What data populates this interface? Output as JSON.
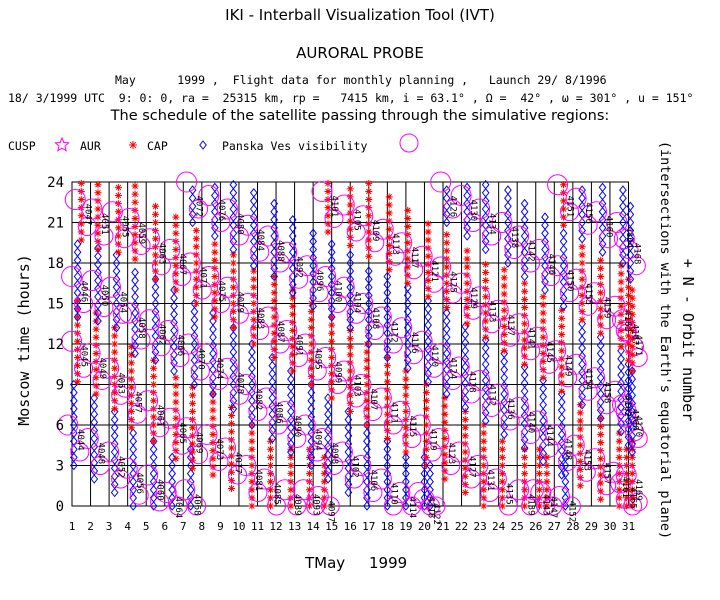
{
  "header": {
    "tool_title": "IKI - Interball Visualization Tool (IVT)",
    "probe": "AURORAL PROBE",
    "info_line1": "May      1999 ,  Flight data for monthly planning ,   Launch 29/ 8/1996",
    "info_line2": "18/ 3/1999 UTC  9: 0: 0, ra =  25315 km, rp =   7415 km, i = 63.1° , Ω =  42° , ω = 301° , u = 151°",
    "schedule_title": "The schedule of the satellite passing through the simulative regions:"
  },
  "legend": {
    "cusp": "CUSP",
    "aur": "AUR",
    "cap": "CAP",
    "visibility": "Panska Ves visibility"
  },
  "colors": {
    "cusp": "#ff00ff",
    "cap": "#ff0000",
    "aur": "#ff00ff",
    "visibility": "#0000ff",
    "grid": "#000000"
  },
  "chart_data": {
    "type": "scatter",
    "title": "The schedule of the satellite passing through the simulative regions:",
    "xlabel": "TMay     1999",
    "ylabel": "Moscow time (hours)",
    "right_label": "+ N - Orbit number",
    "right_sublabel": "(intersections with the Earth's equatorial plane)",
    "x_ticks": [
      "1",
      "2",
      "3",
      "4",
      "5",
      "6",
      "7",
      "8",
      "9",
      "10",
      "11",
      "12",
      "13",
      "14",
      "15",
      "16",
      "17",
      "18",
      "19",
      "20",
      "21",
      "22",
      "23",
      "24",
      "25",
      "26",
      "27",
      "28",
      "29",
      "30",
      "31"
    ],
    "y_ticks": [
      "0",
      "3",
      "6",
      "9",
      "12",
      "15",
      "18",
      "21",
      "24"
    ],
    "xlim": [
      1,
      31
    ],
    "ylim": [
      0,
      24
    ],
    "grid": true,
    "orbit_labels": [
      {
        "n": "4044",
        "day": 1.1,
        "hour": 4.5
      },
      {
        "n": "4045",
        "day": 1.3,
        "hour": 10.7
      },
      {
        "n": "4046",
        "day": 1.3,
        "hour": 15.5
      },
      {
        "n": "4047",
        "day": 1.5,
        "hour": 21.2
      },
      {
        "n": "4048",
        "day": 2.2,
        "hour": 3.5
      },
      {
        "n": "4049",
        "day": 2.3,
        "hour": 9.8
      },
      {
        "n": "4050",
        "day": 2.4,
        "hour": 15.2
      },
      {
        "n": "4051",
        "day": 2.4,
        "hour": 20.5
      },
      {
        "n": "4052",
        "day": 3.3,
        "hour": 2.5
      },
      {
        "n": "4053",
        "day": 3.3,
        "hour": 8.7
      },
      {
        "n": "4054",
        "day": 3.4,
        "hour": 14.7
      },
      {
        "n": "4055",
        "day": 3.5,
        "hour": 20.3
      },
      {
        "n": "4056",
        "day": 4.3,
        "hour": 1.3
      },
      {
        "n": "4057",
        "day": 4.2,
        "hour": 7.3
      },
      {
        "n": "4058",
        "day": 4.4,
        "hour": 12.8
      },
      {
        "n": "4059",
        "day": 4.4,
        "hour": 19.8
      },
      {
        "n": "4060",
        "day": 5.4,
        "hour": 0.8
      },
      {
        "n": "4061",
        "day": 5.4,
        "hour": 6.3
      },
      {
        "n": "4062",
        "day": 5.5,
        "hour": 12.3
      },
      {
        "n": "4063",
        "day": 5.5,
        "hour": 18.3
      },
      {
        "n": "4064",
        "day": 6.4,
        "hour": -0.5
      },
      {
        "n": "4065",
        "day": 6.6,
        "hour": 5.0
      },
      {
        "n": "4066",
        "day": 6.5,
        "hour": 11.5
      },
      {
        "n": "4067",
        "day": 6.6,
        "hour": 17.5
      },
      {
        "n": "4068",
        "day": 7.4,
        "hour": -0.3
      },
      {
        "n": "4069",
        "day": 7.5,
        "hour": 4.3
      },
      {
        "n": "4070",
        "day": 7.6,
        "hour": 10.5
      },
      {
        "n": "4071",
        "day": 7.7,
        "hour": 16.5
      },
      {
        "n": "4072",
        "day": 7.5,
        "hour": 22.5
      },
      {
        "n": "4073",
        "day": 8.6,
        "hour": 3.8
      },
      {
        "n": "4074",
        "day": 8.6,
        "hour": 9.8
      },
      {
        "n": "4075",
        "day": 8.7,
        "hour": 15.5
      },
      {
        "n": "4076",
        "day": 8.7,
        "hour": 21.5
      },
      {
        "n": "4077",
        "day": 9.6,
        "hour": 2.8
      },
      {
        "n": "4078",
        "day": 9.7,
        "hour": 8.7
      },
      {
        "n": "4079",
        "day": 9.7,
        "hour": 14.7
      },
      {
        "n": "4080",
        "day": 9.7,
        "hour": 20.5
      },
      {
        "n": "4081",
        "day": 10.7,
        "hour": 1.5
      },
      {
        "n": "4082",
        "day": 10.7,
        "hour": 7.5
      },
      {
        "n": "4083",
        "day": 10.8,
        "hour": 13.5
      },
      {
        "n": "4084",
        "day": 10.8,
        "hour": 19.3
      },
      {
        "n": "4085",
        "day": 11.7,
        "hour": 0.5
      },
      {
        "n": "4086",
        "day": 11.8,
        "hour": 6.5
      },
      {
        "n": "4087",
        "day": 11.9,
        "hour": 12.5
      },
      {
        "n": "4088",
        "day": 11.9,
        "hour": 18.5
      },
      {
        "n": "4089",
        "day": 12.8,
        "hour": -0.3
      },
      {
        "n": "4090",
        "day": 12.8,
        "hour": 5.5
      },
      {
        "n": "4091",
        "day": 12.9,
        "hour": 11.5
      },
      {
        "n": "4092",
        "day": 12.9,
        "hour": 17.3
      },
      {
        "n": "4093",
        "day": 13.8,
        "hour": -0.3
      },
      {
        "n": "4094",
        "day": 13.9,
        "hour": 4.5
      },
      {
        "n": "4095",
        "day": 13.9,
        "hour": 10.5
      },
      {
        "n": "4096",
        "day": 14.0,
        "hour": 16.3
      },
      {
        "n": "4097",
        "day": 14.6,
        "hour": -0.8
      },
      {
        "n": "4098",
        "day": 14.8,
        "hour": 3.5
      },
      {
        "n": "4099",
        "day": 15.0,
        "hour": 9.5
      },
      {
        "n": "4100",
        "day": 15.0,
        "hour": 15.5
      },
      {
        "n": "4101",
        "day": 14.8,
        "hour": 21.8
      },
      {
        "n": "4102",
        "day": 15.9,
        "hour": 2.5
      },
      {
        "n": "4103",
        "day": 16.0,
        "hour": 8.5
      },
      {
        "n": "4104",
        "day": 16.0,
        "hour": 14.7
      },
      {
        "n": "4105",
        "day": 16.0,
        "hour": 20.8
      },
      {
        "n": "4106",
        "day": 16.9,
        "hour": 1.5
      },
      {
        "n": "4107",
        "day": 16.9,
        "hour": 7.5
      },
      {
        "n": "4108",
        "day": 17.0,
        "hour": 13.5
      },
      {
        "n": "4109",
        "day": 17.0,
        "hour": 20.0
      },
      {
        "n": "4110",
        "day": 18.0,
        "hour": 0.5
      },
      {
        "n": "4111",
        "day": 18.0,
        "hour": 6.5
      },
      {
        "n": "4112",
        "day": 18.0,
        "hour": 12.5
      },
      {
        "n": "4113",
        "day": 18.1,
        "hour": 19.0
      },
      {
        "n": "4114",
        "day": 19.0,
        "hour": -0.5
      },
      {
        "n": "4115",
        "day": 19.0,
        "hour": 5.5
      },
      {
        "n": "4116",
        "day": 19.1,
        "hour": 11.7
      },
      {
        "n": "4117",
        "day": 19.1,
        "hour": 18.0
      },
      {
        "n": "4118",
        "day": 20.0,
        "hour": -0.5
      },
      {
        "n": "4119",
        "day": 20.1,
        "hour": 4.5
      },
      {
        "n": "4120",
        "day": 20.2,
        "hour": 10.7
      },
      {
        "n": "4121",
        "day": 20.2,
        "hour": 17.0
      },
      {
        "n": "4122",
        "day": 20.3,
        "hour": -1.0
      },
      {
        "n": "4123",
        "day": 21.1,
        "hour": 3.5
      },
      {
        "n": "4124",
        "day": 21.2,
        "hour": 9.8
      },
      {
        "n": "4125",
        "day": 21.2,
        "hour": 16.2
      },
      {
        "n": "4126",
        "day": 21.2,
        "hour": 22.5
      },
      {
        "n": "4127",
        "day": 22.2,
        "hour": 2.5
      },
      {
        "n": "4128",
        "day": 22.2,
        "hour": 8.8
      },
      {
        "n": "4129",
        "day": 22.3,
        "hour": 15.0
      },
      {
        "n": "4130",
        "day": 22.3,
        "hour": 21.5
      },
      {
        "n": "4131",
        "day": 23.2,
        "hour": 1.5
      },
      {
        "n": "4132",
        "day": 23.3,
        "hour": 7.8
      },
      {
        "n": "4133",
        "day": 23.3,
        "hour": 14.0
      },
      {
        "n": "4134",
        "day": 23.3,
        "hour": 20.5
      },
      {
        "n": "4135",
        "day": 24.2,
        "hour": 0.5
      },
      {
        "n": "4136",
        "day": 24.3,
        "hour": 6.8
      },
      {
        "n": "4137",
        "day": 24.3,
        "hour": 13.0
      },
      {
        "n": "4138",
        "day": 24.5,
        "hour": 19.5
      },
      {
        "n": "4139",
        "day": 25.4,
        "hour": -0.3
      },
      {
        "n": "4140",
        "day": 25.4,
        "hour": 5.8
      },
      {
        "n": "4141",
        "day": 25.4,
        "hour": 12.0
      },
      {
        "n": "4142",
        "day": 25.4,
        "hour": 18.5
      },
      {
        "n": "4143",
        "day": 26.2,
        "hour": -0.3
      },
      {
        "n": "4144",
        "day": 26.4,
        "hour": 4.8
      },
      {
        "n": "4145",
        "day": 26.4,
        "hour": 11.0
      },
      {
        "n": "4146",
        "day": 26.5,
        "hour": 17.5
      },
      {
        "n": "4147",
        "day": 26.6,
        "hour": -0.5
      },
      {
        "n": "4148",
        "day": 27.4,
        "hour": 3.8
      },
      {
        "n": "4149",
        "day": 27.4,
        "hour": 10.0
      },
      {
        "n": "4150",
        "day": 27.5,
        "hour": 16.3
      },
      {
        "n": "4151",
        "day": 27.5,
        "hour": 22.3
      },
      {
        "n": "4152",
        "day": 27.6,
        "hour": -0.8
      },
      {
        "n": "4153",
        "day": 28.4,
        "hour": 3.0
      },
      {
        "n": "4154",
        "day": 28.5,
        "hour": 9.0
      },
      {
        "n": "4155",
        "day": 28.5,
        "hour": 15.3
      },
      {
        "n": "4156",
        "day": 28.5,
        "hour": 21.3
      },
      {
        "n": "4157",
        "day": 29.5,
        "hour": 2.0
      },
      {
        "n": "4158",
        "day": 29.5,
        "hour": 8.0
      },
      {
        "n": "4159",
        "day": 29.5,
        "hour": 14.3
      },
      {
        "n": "4160",
        "day": 29.6,
        "hour": 20.3
      },
      {
        "n": "4161",
        "day": 30.5,
        "hour": 1.0
      },
      {
        "n": "4162",
        "day": 30.6,
        "hour": 7.0
      },
      {
        "n": "4163",
        "day": 30.6,
        "hour": 13.3
      },
      {
        "n": "4164",
        "day": 30.7,
        "hour": 19.5
      },
      {
        "n": "4165",
        "day": 30.9,
        "hour": 0.2
      },
      {
        "n": "4166",
        "day": 31.0,
        "hour": 6.0
      },
      {
        "n": "4167",
        "day": 31.0,
        "hour": 12.3
      },
      {
        "n": "4168",
        "day": 31.1,
        "hour": 18.3
      },
      {
        "n": "4169",
        "day": 31.2,
        "hour": 0.8
      },
      {
        "n": "4170",
        "day": 31.2,
        "hour": 5.5
      },
      {
        "n": "4171",
        "day": 31.2,
        "hour": 11.5
      }
    ]
  }
}
